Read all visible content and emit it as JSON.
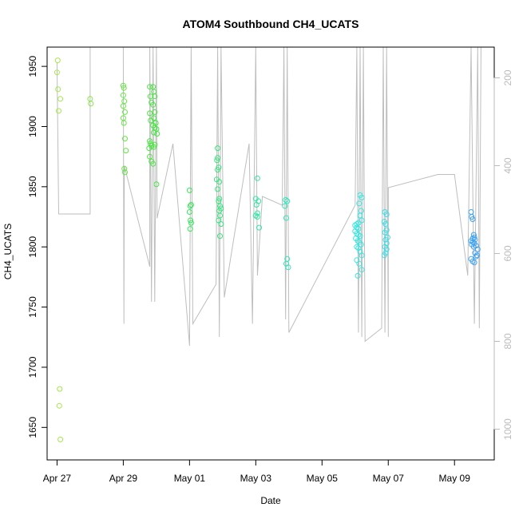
{
  "chart_data": {
    "type": "scatter",
    "title": "ATOM4 Southbound CH4_UCATS",
    "xlabel": "Date",
    "ylabel": "CH4_UCATS",
    "x_ticks": [
      {
        "day": 27,
        "label": "Apr 27"
      },
      {
        "day": 29,
        "label": "Apr 29"
      },
      {
        "day": 31,
        "label": "May 01"
      },
      {
        "day": 33,
        "label": "May 03"
      },
      {
        "day": 35,
        "label": "May 05"
      },
      {
        "day": 37,
        "label": "May 07"
      },
      {
        "day": 39,
        "label": "May 09"
      }
    ],
    "xlim": [
      26.7,
      40.2
    ],
    "ylim": [
      1623,
      1966
    ],
    "y_ticks": [
      1650,
      1700,
      1750,
      1800,
      1850,
      1900,
      1950
    ],
    "y2_label": "",
    "y2_ticks": [
      200,
      400,
      600,
      800,
      1000
    ],
    "y2lim": [
      1070,
      130
    ],
    "colors": {
      "axis": "#000000",
      "pressure_trace": "#bebebe",
      "secondary_ticks": "#bbbbbb",
      "point_gradient": [
        "#a6e84a",
        "#3ee63e",
        "#2ee6b0",
        "#38e6e8",
        "#3da0f0"
      ]
    },
    "pressure_trace": [
      [
        27.0,
        166
      ],
      [
        27.05,
        510
      ],
      [
        28.0,
        510
      ],
      [
        28.0,
        130
      ],
      [
        28.5,
        125
      ],
      [
        29.0,
        130
      ],
      [
        29.02,
        760
      ],
      [
        29.03,
        400
      ],
      [
        29.8,
        630
      ],
      [
        29.8,
        130
      ],
      [
        29.85,
        710
      ],
      [
        29.9,
        130
      ],
      [
        29.95,
        710
      ],
      [
        30.0,
        130
      ],
      [
        30.02,
        520
      ],
      [
        30.5,
        350
      ],
      [
        31.0,
        810
      ],
      [
        31.05,
        130
      ],
      [
        31.1,
        760
      ],
      [
        31.8,
        670
      ],
      [
        31.85,
        130
      ],
      [
        31.9,
        790
      ],
      [
        31.95,
        130
      ],
      [
        32.05,
        700
      ],
      [
        32.8,
        350
      ],
      [
        32.9,
        760
      ],
      [
        33.0,
        130
      ],
      [
        33.05,
        650
      ],
      [
        33.2,
        470
      ],
      [
        33.8,
        490
      ],
      [
        33.85,
        130
      ],
      [
        33.9,
        750
      ],
      [
        33.95,
        130
      ],
      [
        34.0,
        780
      ],
      [
        36.0,
        490
      ],
      [
        36.05,
        130
      ],
      [
        36.1,
        780
      ],
      [
        36.15,
        130
      ],
      [
        36.2,
        790
      ],
      [
        36.25,
        130
      ],
      [
        36.3,
        800
      ],
      [
        36.8,
        770
      ],
      [
        36.85,
        130
      ],
      [
        36.9,
        780
      ],
      [
        36.95,
        130
      ],
      [
        37.0,
        790
      ],
      [
        37.0,
        450
      ],
      [
        38.5,
        420
      ],
      [
        39.0,
        420
      ],
      [
        39.4,
        650
      ],
      [
        39.5,
        130
      ],
      [
        39.6,
        760
      ],
      [
        39.7,
        130
      ],
      [
        39.75,
        770
      ],
      [
        39.8,
        130
      ]
    ],
    "points": [
      {
        "x": 27.02,
        "y": 1955
      },
      {
        "x": 27.0,
        "y": 1945
      },
      {
        "x": 27.03,
        "y": 1931
      },
      {
        "x": 27.1,
        "y": 1923
      },
      {
        "x": 27.05,
        "y": 1913
      },
      {
        "x": 27.08,
        "y": 1682
      },
      {
        "x": 27.07,
        "y": 1668
      },
      {
        "x": 27.1,
        "y": 1640
      },
      {
        "x": 28.0,
        "y": 1923
      },
      {
        "x": 28.02,
        "y": 1919
      },
      {
        "x": 29.0,
        "y": 1934
      },
      {
        "x": 29.02,
        "y": 1932
      },
      {
        "x": 29.0,
        "y": 1926
      },
      {
        "x": 29.03,
        "y": 1921
      },
      {
        "x": 29.0,
        "y": 1917
      },
      {
        "x": 29.05,
        "y": 1912
      },
      {
        "x": 29.0,
        "y": 1907
      },
      {
        "x": 29.02,
        "y": 1903
      },
      {
        "x": 29.05,
        "y": 1890
      },
      {
        "x": 29.08,
        "y": 1880
      },
      {
        "x": 29.03,
        "y": 1865
      },
      {
        "x": 29.05,
        "y": 1862
      },
      {
        "x": 29.8,
        "y": 1933
      },
      {
        "x": 29.82,
        "y": 1925
      },
      {
        "x": 29.85,
        "y": 1920
      },
      {
        "x": 29.8,
        "y": 1911
      },
      {
        "x": 29.83,
        "y": 1905
      },
      {
        "x": 29.8,
        "y": 1888
      },
      {
        "x": 29.82,
        "y": 1886
      },
      {
        "x": 29.85,
        "y": 1884
      },
      {
        "x": 29.78,
        "y": 1882
      },
      {
        "x": 29.8,
        "y": 1875
      },
      {
        "x": 29.85,
        "y": 1871
      },
      {
        "x": 29.9,
        "y": 1869
      },
      {
        "x": 29.9,
        "y": 1933
      },
      {
        "x": 29.92,
        "y": 1929
      },
      {
        "x": 29.95,
        "y": 1925
      },
      {
        "x": 29.9,
        "y": 1918
      },
      {
        "x": 29.95,
        "y": 1912
      },
      {
        "x": 29.92,
        "y": 1907
      },
      {
        "x": 29.98,
        "y": 1903
      },
      {
        "x": 29.9,
        "y": 1901
      },
      {
        "x": 29.95,
        "y": 1899
      },
      {
        "x": 29.92,
        "y": 1895
      },
      {
        "x": 29.95,
        "y": 1885
      },
      {
        "x": 29.92,
        "y": 1883
      },
      {
        "x": 30.0,
        "y": 1898
      },
      {
        "x": 30.02,
        "y": 1894
      },
      {
        "x": 30.0,
        "y": 1852
      },
      {
        "x": 31.0,
        "y": 1847
      },
      {
        "x": 31.05,
        "y": 1835
      },
      {
        "x": 31.02,
        "y": 1834
      },
      {
        "x": 31.0,
        "y": 1829
      },
      {
        "x": 31.03,
        "y": 1822
      },
      {
        "x": 31.05,
        "y": 1820
      },
      {
        "x": 31.02,
        "y": 1815
      },
      {
        "x": 31.85,
        "y": 1882
      },
      {
        "x": 31.85,
        "y": 1874
      },
      {
        "x": 31.83,
        "y": 1872
      },
      {
        "x": 31.88,
        "y": 1866
      },
      {
        "x": 31.85,
        "y": 1864
      },
      {
        "x": 31.82,
        "y": 1856
      },
      {
        "x": 31.9,
        "y": 1854
      },
      {
        "x": 31.85,
        "y": 1848
      },
      {
        "x": 31.9,
        "y": 1840
      },
      {
        "x": 31.88,
        "y": 1838
      },
      {
        "x": 31.92,
        "y": 1834
      },
      {
        "x": 31.95,
        "y": 1832
      },
      {
        "x": 31.9,
        "y": 1830
      },
      {
        "x": 31.92,
        "y": 1826
      },
      {
        "x": 31.88,
        "y": 1822
      },
      {
        "x": 31.95,
        "y": 1819
      },
      {
        "x": 31.92,
        "y": 1809
      },
      {
        "x": 33.05,
        "y": 1857
      },
      {
        "x": 33.0,
        "y": 1840
      },
      {
        "x": 33.08,
        "y": 1838
      },
      {
        "x": 33.02,
        "y": 1835
      },
      {
        "x": 33.05,
        "y": 1828
      },
      {
        "x": 33.0,
        "y": 1826
      },
      {
        "x": 33.05,
        "y": 1825
      },
      {
        "x": 33.1,
        "y": 1816
      },
      {
        "x": 33.9,
        "y": 1839
      },
      {
        "x": 33.95,
        "y": 1838
      },
      {
        "x": 33.88,
        "y": 1834
      },
      {
        "x": 33.92,
        "y": 1824
      },
      {
        "x": 33.95,
        "y": 1790
      },
      {
        "x": 33.92,
        "y": 1786
      },
      {
        "x": 33.98,
        "y": 1783
      },
      {
        "x": 36.15,
        "y": 1843
      },
      {
        "x": 36.2,
        "y": 1841
      },
      {
        "x": 36.12,
        "y": 1836
      },
      {
        "x": 36.18,
        "y": 1830
      },
      {
        "x": 36.15,
        "y": 1826
      },
      {
        "x": 36.2,
        "y": 1822
      },
      {
        "x": 36.1,
        "y": 1820
      },
      {
        "x": 36.05,
        "y": 1819
      },
      {
        "x": 36.0,
        "y": 1818
      },
      {
        "x": 36.05,
        "y": 1816
      },
      {
        "x": 36.1,
        "y": 1815
      },
      {
        "x": 36.0,
        "y": 1813
      },
      {
        "x": 36.05,
        "y": 1811
      },
      {
        "x": 36.1,
        "y": 1810
      },
      {
        "x": 36.15,
        "y": 1809
      },
      {
        "x": 36.02,
        "y": 1807
      },
      {
        "x": 36.08,
        "y": 1805
      },
      {
        "x": 36.12,
        "y": 1804
      },
      {
        "x": 36.18,
        "y": 1802
      },
      {
        "x": 36.05,
        "y": 1800
      },
      {
        "x": 36.1,
        "y": 1799
      },
      {
        "x": 36.15,
        "y": 1796
      },
      {
        "x": 36.2,
        "y": 1793
      },
      {
        "x": 36.05,
        "y": 1789
      },
      {
        "x": 36.12,
        "y": 1786
      },
      {
        "x": 36.2,
        "y": 1781
      },
      {
        "x": 36.08,
        "y": 1776
      },
      {
        "x": 36.9,
        "y": 1829
      },
      {
        "x": 36.95,
        "y": 1827
      },
      {
        "x": 36.88,
        "y": 1821
      },
      {
        "x": 36.92,
        "y": 1819
      },
      {
        "x": 36.95,
        "y": 1814
      },
      {
        "x": 36.9,
        "y": 1812
      },
      {
        "x": 36.98,
        "y": 1808
      },
      {
        "x": 36.92,
        "y": 1806
      },
      {
        "x": 36.95,
        "y": 1803
      },
      {
        "x": 36.9,
        "y": 1800
      },
      {
        "x": 36.95,
        "y": 1798
      },
      {
        "x": 36.92,
        "y": 1795
      },
      {
        "x": 36.88,
        "y": 1793
      },
      {
        "x": 39.5,
        "y": 1829
      },
      {
        "x": 39.52,
        "y": 1825
      },
      {
        "x": 39.55,
        "y": 1823
      },
      {
        "x": 39.58,
        "y": 1810
      },
      {
        "x": 39.6,
        "y": 1808
      },
      {
        "x": 39.55,
        "y": 1807
      },
      {
        "x": 39.62,
        "y": 1806
      },
      {
        "x": 39.5,
        "y": 1805
      },
      {
        "x": 39.55,
        "y": 1804
      },
      {
        "x": 39.6,
        "y": 1803
      },
      {
        "x": 39.52,
        "y": 1802
      },
      {
        "x": 39.65,
        "y": 1801
      },
      {
        "x": 39.58,
        "y": 1800
      },
      {
        "x": 39.7,
        "y": 1798
      },
      {
        "x": 39.62,
        "y": 1795
      },
      {
        "x": 39.68,
        "y": 1793
      },
      {
        "x": 39.65,
        "y": 1792
      },
      {
        "x": 39.5,
        "y": 1790
      },
      {
        "x": 39.55,
        "y": 1788
      },
      {
        "x": 39.6,
        "y": 1787
      }
    ]
  }
}
